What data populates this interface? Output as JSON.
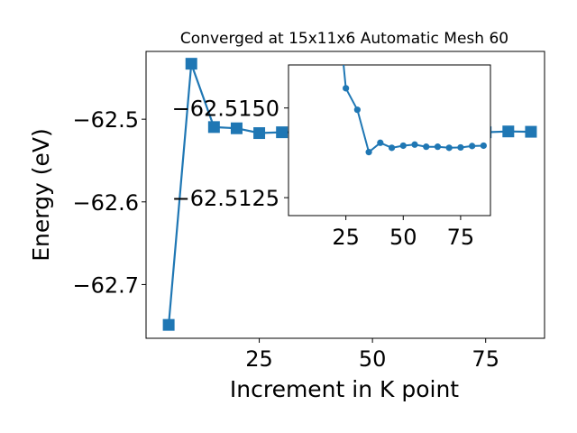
{
  "chart_data": [
    {
      "type": "line",
      "title": "Converged at 15x11x6 Automatic Mesh 60",
      "xlabel": "Increment in K point",
      "ylabel": "Energy (eV)",
      "xlim": [
        0,
        88
      ],
      "ylim": [
        -62.765,
        -62.418
      ],
      "x_ticks": [
        25,
        50,
        75
      ],
      "y_ticks": [
        -62.5,
        -62.6,
        -62.7
      ],
      "y_tick_labels": [
        "−62.5",
        "−62.6",
        "−62.7"
      ],
      "marker": "square",
      "color": "#1f77b4",
      "series": [
        {
          "x": [
            5,
            10,
            15,
            20,
            25,
            30,
            35,
            40,
            45,
            50,
            55,
            60,
            65,
            70,
            75,
            80,
            85
          ],
          "values": [
            -62.7488,
            -62.4329,
            -62.5095,
            -62.511,
            -62.5168,
            -62.5158,
            -62.5159,
            -62.5158,
            -62.5158,
            -62.5158,
            -62.5158,
            -62.5158,
            -62.5158,
            -62.5158,
            -62.5158,
            -62.5148,
            -62.5152
          ]
        }
      ]
    },
    {
      "type": "line",
      "role": "inset",
      "xlim": [
        0,
        88
      ],
      "ylim": [
        -62.512,
        -62.5162
      ],
      "x_ticks": [
        25,
        50,
        75
      ],
      "y_ticks": [
        -62.515,
        -62.5125
      ],
      "y_tick_labels": [
        "−62.5150",
        "−62.5125"
      ],
      "marker": "circle",
      "color": "#1f77b4",
      "series": [
        {
          "x": [
            24,
            25,
            30,
            35,
            40,
            45,
            50,
            55,
            60,
            65,
            70,
            75,
            80,
            85
          ],
          "values": [
            -62.5162,
            -62.51555,
            -62.51495,
            -62.51377,
            -62.51403,
            -62.51389,
            -62.51395,
            -62.51398,
            -62.51392,
            -62.51392,
            -62.51389,
            -62.5139,
            -62.51394,
            -62.51395
          ]
        }
      ]
    }
  ]
}
